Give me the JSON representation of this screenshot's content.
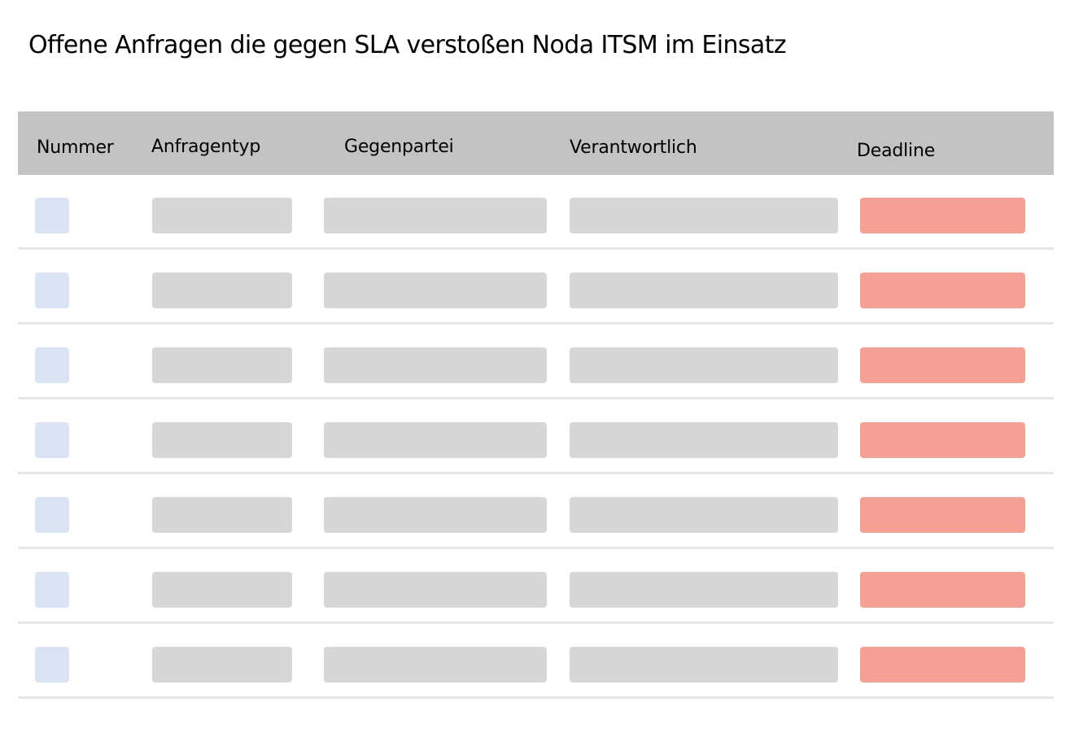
{
  "page": {
    "title": "Offene Anfragen die gegen SLA verstoßen Noda ITSM im Einsatz"
  },
  "table": {
    "columns": {
      "nummer": "Nummer",
      "anfragentyp": "Anfragentyp",
      "gegenpartei": "Gegenpartei",
      "verantwortlich": "Verantwortlich",
      "deadline": "Deadline"
    },
    "row_count": 7
  },
  "colors": {
    "header_background": "#c3c3c3",
    "placeholder_number": "#dae4f2",
    "placeholder_text": "#d7d7d7",
    "deadline_overdue": "#f4a094",
    "row_divider": "#e6e6e6"
  }
}
